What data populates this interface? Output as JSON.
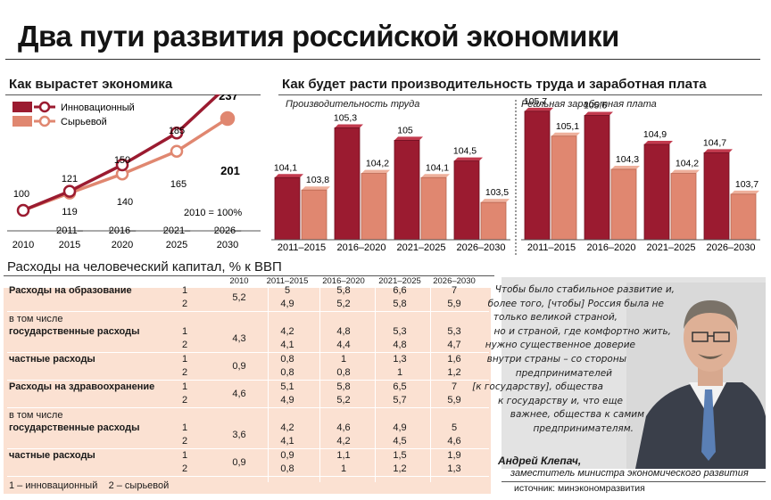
{
  "title": "Два пути развития российской экономики",
  "growth": {
    "title": "Как вырастет экономика",
    "legend": [
      {
        "label": "Инновационный",
        "color": "#9b1b30"
      },
      {
        "label": "Сырьевой",
        "color": "#e08770"
      }
    ],
    "note": "2010 = 100%"
  },
  "productivity": {
    "title": "Как будет расти производительность труда и заработная плата",
    "left_label": "Производительность труда",
    "right_label": "Реальная заработная плата"
  },
  "chart_data": [
    {
      "type": "line",
      "title": "Как вырастет экономика",
      "categories": [
        "2010",
        "2011–2015",
        "2016–2020",
        "2021–2025",
        "2026–2030"
      ],
      "series": [
        {
          "name": "Инновационный",
          "values": [
            100,
            121,
            150,
            185,
            237
          ],
          "labels": [
            "100",
            "121",
            "150",
            "185",
            "237"
          ]
        },
        {
          "name": "Сырьевой",
          "values": [
            100,
            119,
            140,
            165,
            201
          ],
          "labels": [
            "",
            "119",
            "140",
            "165",
            "201"
          ]
        }
      ]
    },
    {
      "type": "bar",
      "title": "Производительность труда",
      "categories": [
        "2011–2015",
        "2016–2020",
        "2021–2025",
        "2026–2030"
      ],
      "series": [
        {
          "name": "Инновационный",
          "values": [
            104.1,
            105.3,
            105,
            104.5
          ],
          "labels": [
            "104,1",
            "105,3",
            "105",
            "104,5"
          ]
        },
        {
          "name": "Сырьевой",
          "values": [
            103.8,
            104.2,
            104.1,
            103.5
          ],
          "labels": [
            "103,8",
            "104,2",
            "104,1",
            "103,5"
          ]
        }
      ]
    },
    {
      "type": "bar",
      "title": "Реальная заработная плата",
      "categories": [
        "2011–2015",
        "2016–2020",
        "2021–2025",
        "2026–2030"
      ],
      "series": [
        {
          "name": "Инновационный",
          "values": [
            105.7,
            105.6,
            104.9,
            104.7
          ],
          "labels": [
            "105,7",
            "105.6",
            "104,9",
            "104,7"
          ]
        },
        {
          "name": "Сырьевой",
          "values": [
            105.1,
            104.3,
            104.2,
            103.7
          ],
          "labels": [
            "105,1",
            "104,3",
            "104,2",
            "103,7"
          ]
        }
      ]
    },
    {
      "type": "table",
      "title": "Расходы на человеческий капитал, % к ВВП",
      "columns": [
        "2010",
        "2011–2015",
        "2016–2020",
        "2021–2025",
        "2026–2030"
      ],
      "rows": [
        {
          "label": "Расходы на образование",
          "bold": true,
          "base": "5,2",
          "s1": [
            "5",
            "5,8",
            "6,6",
            "7"
          ],
          "s2": [
            "4,9",
            "5,2",
            "5,8",
            "5,9"
          ]
        },
        {
          "section": "в том числе"
        },
        {
          "label": "государственные расходы",
          "bold": true,
          "base": "4,3",
          "s1": [
            "4,2",
            "4,8",
            "5,3",
            "5,3"
          ],
          "s2": [
            "4,1",
            "4,4",
            "4,8",
            "4,7"
          ]
        },
        {
          "label": "частные расходы",
          "bold": true,
          "base": "0,9",
          "s1": [
            "0,8",
            "1",
            "1,3",
            "1,6"
          ],
          "s2": [
            "0,8",
            "0,8",
            "1",
            "1,2"
          ]
        },
        {
          "label": "Расходы на здравоохранение",
          "bold": true,
          "base": "4,6",
          "s1": [
            "5,1",
            "5,8",
            "6,5",
            "7"
          ],
          "s2": [
            "4,9",
            "5,2",
            "5,7",
            "5,9"
          ]
        },
        {
          "section": "в том числе"
        },
        {
          "label": "государственные расходы",
          "bold": true,
          "base": "3,6",
          "s1": [
            "4,2",
            "4,6",
            "4,9",
            "5"
          ],
          "s2": [
            "4,1",
            "4,2",
            "4,5",
            "4,6"
          ]
        },
        {
          "label": "частные расходы",
          "bold": true,
          "base": "0,9",
          "s1": [
            "0,9",
            "1,1",
            "1,5",
            "1,9"
          ],
          "s2": [
            "0,8",
            "1",
            "1,2",
            "1,3"
          ]
        }
      ],
      "scenario_labels": [
        "1",
        "2"
      ],
      "footnote": "1 – инновационный    2 – сырьевой"
    }
  ],
  "quote": {
    "lines": [
      "Чтобы было стабильное развитие и,",
      "более того, [чтобы] Россия была не",
      "только великой страной,",
      "но и страной, где комфортно жить,",
      "нужно существенное доверие",
      "внутри страны – со стороны",
      "предпринимателей",
      "[к государству], общества",
      "к государству и, что еще",
      "важнее, общества к самим",
      "предпринимателям."
    ],
    "author": "Андрей Клепач,",
    "position": "заместитель министра экономического развития"
  },
  "source": "источник: минэкономразвития"
}
